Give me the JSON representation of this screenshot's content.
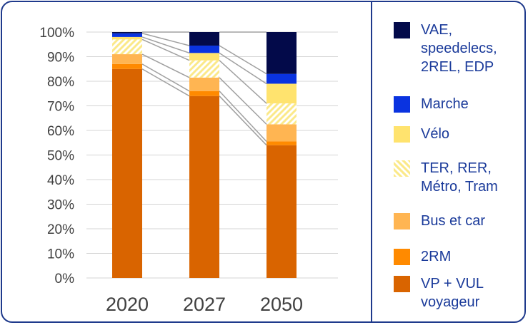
{
  "chart_data": {
    "type": "bar",
    "stacked": true,
    "categories": [
      "2020",
      "2027",
      "2050"
    ],
    "ylim": [
      0,
      100
    ],
    "yticks": [
      "0%",
      "10%",
      "20%",
      "30%",
      "40%",
      "50%",
      "60%",
      "70%",
      "80%",
      "90%",
      "100%"
    ],
    "grid": true,
    "legend_position": "right",
    "series": [
      {
        "name": "VP + VUL voyageur",
        "color": "#d96400",
        "values": [
          85,
          74,
          54
        ]
      },
      {
        "name": "2RM",
        "color": "#ff8a00",
        "values": [
          2,
          2,
          1.5
        ]
      },
      {
        "name": "Bus et car",
        "color": "#ffb552",
        "values": [
          4,
          5.5,
          7
        ]
      },
      {
        "name": "TER, RER, Métro, Tram",
        "color": "#fff2a8",
        "pattern": "hatched",
        "values": [
          6,
          7,
          8.5
        ]
      },
      {
        "name": "Vélo",
        "color": "#ffe36e",
        "values": [
          1,
          3,
          8
        ]
      },
      {
        "name": "Marche",
        "color": "#0a33e0",
        "values": [
          1.5,
          3,
          4
        ]
      },
      {
        "name": "VAE, speedelecs, 2REL, EDP",
        "color": "#030a4a",
        "values": [
          0.5,
          5.5,
          17
        ]
      }
    ],
    "legend_order": [
      "VAE,\nspeedelecs,\n2REL, EDP",
      "Marche",
      "Vélo",
      "TER, RER,\nMétro, Tram",
      "Bus et car",
      "2RM",
      "VP + VUL\nvoyageur"
    ]
  }
}
